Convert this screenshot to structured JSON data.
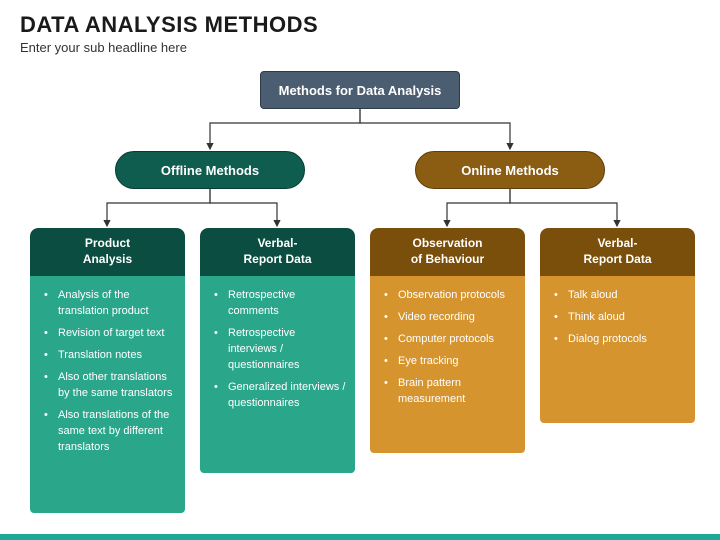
{
  "header": {
    "title": "DATA ANALYSIS METHODS",
    "subtitle": "Enter your sub headline here"
  },
  "root": {
    "label": "Methods for Data Analysis",
    "bg": "#4b5d70"
  },
  "branches": {
    "offline": {
      "label": "Offline Methods",
      "pill_bg": "#0f5d4e",
      "head_bg": "#0c4d41",
      "body_bg": "#2aa68b",
      "cards": [
        {
          "title": "Product\nAnalysis",
          "items": [
            "Analysis of the translation product",
            "Revision of target text",
            "Translation notes",
            "Also other translations by the same translators",
            "Also translations of the same text by different translators"
          ]
        },
        {
          "title": "Verbal-\nReport Data",
          "items": [
            "Retrospective comments",
            "Retrospective interviews / questionnaires",
            "Generalized interviews / questionnaires"
          ]
        }
      ]
    },
    "online": {
      "label": "Online Methods",
      "pill_bg": "#8a5d12",
      "head_bg": "#7a4f0c",
      "body_bg": "#d5942e",
      "cards": [
        {
          "title": "Observation\nof Behaviour",
          "items": [
            "Observation protocols",
            "Video recording",
            "Computer protocols",
            "Eye tracking",
            "Brain pattern measurement"
          ]
        },
        {
          "title": "Verbal-\nReport Data",
          "items": [
            "Talk aloud",
            "Think aloud",
            "Dialog protocols"
          ]
        }
      ]
    }
  },
  "connectors": {
    "stroke": "#333333",
    "stroke_width": 1.2,
    "arrow_size": 5
  },
  "accent_bar": "#1ea896"
}
